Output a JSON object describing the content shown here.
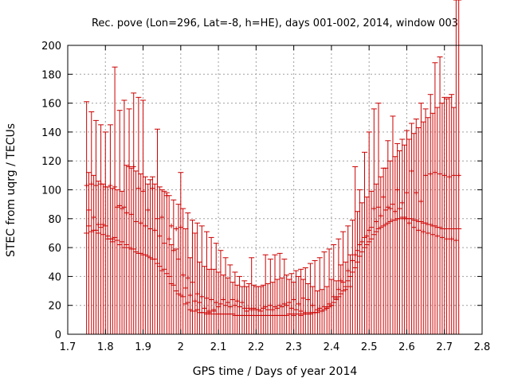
{
  "chart_data": {
    "type": "scatter",
    "title": "Rec. pove (Lon=296, Lat=-8, h=HE), days 001-002, 2014, window 003",
    "xlabel": "GPS time / Days of year 2014",
    "ylabel": "STEC from uqrg / TECUs",
    "xlim": [
      1.7,
      2.8
    ],
    "ylim": [
      0,
      200
    ],
    "xticks": [
      "1.7",
      "1.8",
      "1.9",
      "2",
      "2.1",
      "2.2",
      "2.3",
      "2.4",
      "2.5",
      "2.6",
      "2.7",
      "2.8"
    ],
    "yticks": [
      "0",
      "20",
      "40",
      "60",
      "80",
      "100",
      "120",
      "140",
      "160",
      "180",
      "200"
    ],
    "grid": true,
    "legend": "none",
    "color": "#cc0000",
    "series": [
      {
        "x": [
          1.75,
          1.756,
          1.763,
          1.769,
          1.775,
          1.781,
          1.788,
          1.794,
          1.8,
          1.806,
          1.813,
          1.819,
          1.825,
          1.831,
          1.838,
          1.844,
          1.85,
          1.856,
          1.863,
          1.869,
          1.875,
          1.881,
          1.888,
          1.894,
          1.9,
          1.906,
          1.913,
          1.919,
          1.925,
          1.931,
          1.938,
          1.944,
          1.95,
          1.956,
          1.963,
          1.969,
          1.975,
          1.981,
          1.988,
          1.994,
          2.0,
          2.006,
          2.013,
          2.019,
          2.025,
          2.031,
          2.038,
          2.044,
          2.05,
          2.056,
          2.063,
          2.069,
          2.075,
          2.081,
          2.088,
          2.094,
          2.1,
          2.106,
          2.113,
          2.119,
          2.125,
          2.131,
          2.138,
          2.144,
          2.15,
          2.156,
          2.163,
          2.169,
          2.175,
          2.181,
          2.188,
          2.194,
          2.2,
          2.206,
          2.213,
          2.219,
          2.225,
          2.231,
          2.238,
          2.244,
          2.25,
          2.256,
          2.263,
          2.269,
          2.275,
          2.281,
          2.288,
          2.294,
          2.3,
          2.306,
          2.313,
          2.319,
          2.325,
          2.331,
          2.338,
          2.344,
          2.35,
          2.356,
          2.363,
          2.369,
          2.375,
          2.381,
          2.388,
          2.394,
          2.4,
          2.406,
          2.413,
          2.419,
          2.425,
          2.431,
          2.438,
          2.444,
          2.45,
          2.456,
          2.463,
          2.469,
          2.475,
          2.481,
          2.488,
          2.494,
          2.5,
          2.506,
          2.513,
          2.519,
          2.525,
          2.531,
          2.538,
          2.544,
          2.55,
          2.556,
          2.563,
          2.569,
          2.575,
          2.581,
          2.588,
          2.594,
          2.6,
          2.606,
          2.613,
          2.619,
          2.625,
          2.631,
          2.638,
          2.644,
          2.65,
          2.656,
          2.663,
          2.669,
          2.675,
          2.681,
          2.688,
          2.694,
          2.7,
          2.706,
          2.713,
          2.719,
          2.725,
          2.731,
          2.738
        ],
        "y_top": [
          161,
          112,
          154,
          110,
          148,
          106,
          145,
          104,
          140,
          102,
          145,
          101,
          185,
          100,
          155,
          99,
          162,
          117,
          156,
          115,
          167,
          113,
          164,
          111,
          162,
          109,
          104,
          107,
          109,
          104,
          142,
          102,
          100,
          99,
          98,
          96,
          62,
          93,
          59,
          90,
          112,
          87,
          73,
          84,
          53,
          79,
          70,
          77,
          50,
          75,
          47,
          71,
          45,
          67,
          45,
          63,
          43,
          58,
          41,
          53,
          39,
          48,
          36,
          43,
          34,
          40,
          33,
          37,
          33,
          35,
          53,
          34,
          33,
          33,
          33,
          34,
          55,
          35,
          52,
          36,
          55,
          38,
          56,
          39,
          52,
          41,
          38,
          42,
          36,
          44,
          40,
          45,
          38,
          46,
          35,
          49,
          33,
          51,
          30,
          53,
          31,
          57,
          33,
          59,
          38,
          62,
          37,
          66,
          48,
          71,
          50,
          75,
          55,
          79,
          116,
          85,
          100,
          91,
          126,
          95,
          140,
          99,
          156,
          104,
          160,
          109,
          115,
          115,
          134,
          120,
          151,
          123,
          132,
          127,
          135,
          131,
          141,
          135,
          146,
          139,
          149,
          143,
          160,
          147,
          156,
          150,
          166,
          153,
          188,
          157,
          192,
          160,
          164,
          163,
          164,
          166,
          157
        ],
        "y_mid": [
          103,
          86,
          104,
          81,
          103,
          76,
          104,
          76,
          102,
          68,
          103,
          66,
          102,
          88,
          89,
          87,
          88,
          84,
          116,
          83,
          116,
          78,
          101,
          77,
          99,
          75,
          86,
          73,
          101,
          72,
          80,
          68,
          81,
          63,
          96,
          66,
          75,
          58,
          73,
          52,
          74,
          41,
          32,
          39,
          27,
          36,
          23,
          28,
          22,
          26,
          18,
          25,
          16,
          24,
          17,
          22,
          19,
          21,
          24,
          20,
          22,
          19,
          24,
          20,
          23,
          19,
          22,
          18,
          16,
          18,
          17,
          18,
          17,
          17,
          16,
          18,
          19,
          17,
          20,
          17,
          19,
          18,
          20,
          19,
          21,
          20,
          22,
          18,
          24,
          17,
          21,
          16,
          25,
          15,
          24,
          15,
          20,
          15,
          17,
          18,
          16,
          19,
          18,
          21,
          20,
          26,
          25,
          31,
          37,
          36,
          31,
          44,
          33,
          51,
          55,
          58,
          62,
          64,
          67,
          68,
          72,
          74,
          87,
          78,
          88,
          82,
          95,
          86,
          88,
          87,
          90,
          85,
          100,
          87,
          91,
          80,
          98,
          77,
          113,
          74,
          98,
          72,
          92,
          71,
          110,
          70,
          111,
          69,
          112,
          68,
          111,
          67,
          110,
          66,
          109,
          66,
          110,
          65,
          110
        ],
        "y_bot": [
          70,
          75,
          71,
          72,
          72,
          70,
          74,
          69,
          75,
          66,
          66,
          64,
          67,
          65,
          62,
          64,
          60,
          62,
          60,
          59,
          59,
          57,
          56,
          56,
          55,
          55,
          54,
          53,
          52,
          52,
          49,
          47,
          44,
          45,
          42,
          40,
          35,
          34,
          30,
          28,
          27,
          26,
          21,
          22,
          17,
          16,
          16,
          17,
          15,
          15,
          15,
          14,
          15,
          14,
          16,
          14,
          14,
          14,
          14,
          14,
          14,
          14,
          14,
          13,
          13,
          13,
          13,
          13,
          13,
          13,
          13,
          13,
          13,
          13,
          13,
          13,
          13,
          13,
          13,
          13,
          13,
          13,
          13,
          13,
          13,
          13,
          14,
          14,
          13,
          14,
          14,
          13,
          14,
          14,
          14,
          14,
          15,
          15,
          15,
          16,
          16,
          17,
          18,
          19,
          20,
          22,
          24,
          26,
          28,
          30,
          33,
          37,
          40,
          43,
          46,
          50,
          54,
          57,
          60,
          62,
          64,
          66,
          69,
          71,
          73,
          74,
          75,
          76,
          77,
          78,
          79,
          79,
          80,
          80,
          81,
          81,
          80,
          80,
          80,
          79,
          79,
          78,
          78,
          77,
          77,
          76,
          76,
          75,
          75,
          74,
          74,
          73,
          73,
          73,
          73,
          73,
          73,
          73,
          73
        ]
      }
    ]
  }
}
